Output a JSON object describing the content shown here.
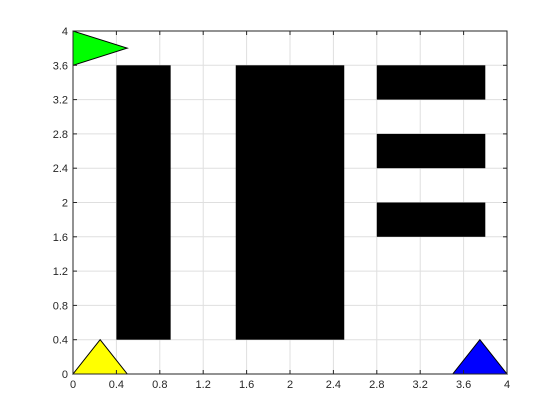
{
  "chart_data": {
    "type": "scatter",
    "title": "",
    "xlabel": "",
    "ylabel": "",
    "xlim": [
      0,
      4
    ],
    "ylim": [
      0,
      4
    ],
    "grid": true,
    "xticks": [
      "0",
      "0.4",
      "0.8",
      "1.2",
      "1.6",
      "2",
      "2.4",
      "2.8",
      "3.2",
      "3.6",
      "4"
    ],
    "yticks": [
      "0",
      "0.4",
      "0.8",
      "1.2",
      "1.6",
      "2",
      "2.4",
      "2.8",
      "3.2",
      "3.6",
      "4"
    ],
    "obstacles": [
      {
        "x": [
          0.4,
          0.9
        ],
        "y": [
          0.4,
          3.6
        ]
      },
      {
        "x": [
          1.5,
          2.0
        ],
        "y": [
          0.4,
          3.6
        ]
      },
      {
        "x": [
          2.0,
          2.5
        ],
        "y": [
          0.4,
          3.6
        ]
      },
      {
        "x": [
          2.8,
          3.8
        ],
        "y": [
          3.2,
          3.6
        ]
      },
      {
        "x": [
          2.8,
          3.8
        ],
        "y": [
          2.4,
          2.8
        ]
      },
      {
        "x": [
          2.8,
          3.8
        ],
        "y": [
          1.6,
          2.0
        ]
      }
    ],
    "markers": [
      {
        "shape": "triangle-right",
        "color": "#00ff00",
        "points": [
          [
            0,
            3.6
          ],
          [
            0,
            4.0
          ],
          [
            0.5,
            3.8
          ]
        ]
      },
      {
        "shape": "triangle-up",
        "color": "#ffff00",
        "points": [
          [
            0,
            0
          ],
          [
            0.5,
            0
          ],
          [
            0.25,
            0.4
          ]
        ]
      },
      {
        "shape": "triangle-up",
        "color": "#0000ff",
        "points": [
          [
            3.5,
            0
          ],
          [
            4.0,
            0
          ],
          [
            3.75,
            0.4
          ]
        ]
      }
    ],
    "colors": {
      "obstacle": "#000000",
      "grid": "#dfdfdf",
      "axis": "#262626",
      "background": "#ffffff"
    }
  }
}
